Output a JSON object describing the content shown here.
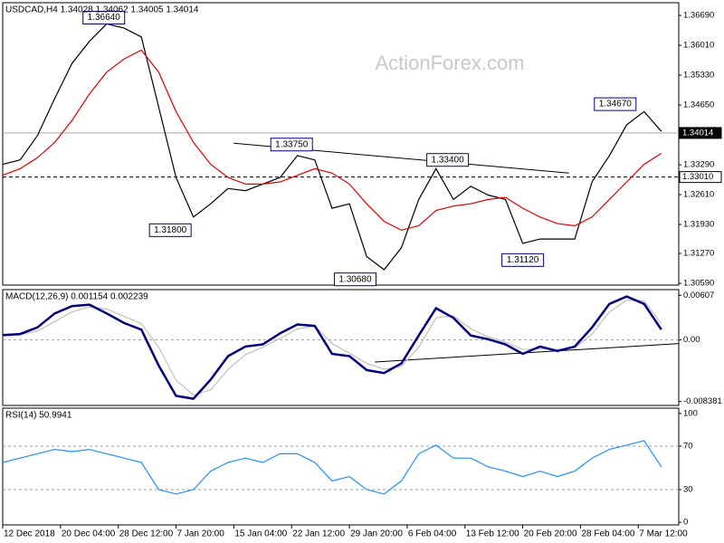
{
  "chart_data": [
    {
      "type": "line",
      "title": "USDCAD,H4 1.34028 1.34062 1.34005 1.34014",
      "watermark": "ActionForex.com",
      "x": [
        0,
        3,
        6,
        9,
        12,
        15,
        18,
        21,
        24,
        27,
        30,
        33,
        36,
        39,
        42,
        45,
        48,
        51,
        54,
        57,
        60,
        63,
        66,
        69,
        72,
        75,
        78,
        81,
        84,
        87,
        90,
        93,
        96,
        99,
        102,
        105,
        108,
        111,
        114
      ],
      "series": [
        {
          "color": "#000000",
          "values": [
            1.333,
            1.334,
            1.3395,
            1.348,
            1.356,
            1.361,
            1.365,
            1.364,
            1.362,
            1.346,
            1.33,
            1.321,
            1.324,
            1.3275,
            1.327,
            1.3285,
            1.33,
            1.335,
            1.334,
            1.323,
            1.324,
            1.312,
            1.309,
            1.314,
            1.325,
            1.332,
            1.325,
            1.328,
            1.326,
            1.325,
            1.315,
            1.316,
            1.316,
            1.316,
            1.329,
            1.335,
            1.342,
            1.345,
            1.3405
          ]
        },
        {
          "color": "#e00000",
          "values": [
            1.3305,
            1.332,
            1.3345,
            1.338,
            1.343,
            1.349,
            1.354,
            1.357,
            1.359,
            1.354,
            1.345,
            1.338,
            1.333,
            1.33,
            1.3285,
            1.3285,
            1.329,
            1.3305,
            1.332,
            1.331,
            1.3285,
            1.324,
            1.32,
            1.318,
            1.319,
            1.3225,
            1.3235,
            1.324,
            1.325,
            1.3255,
            1.323,
            1.321,
            1.3195,
            1.319,
            1.321,
            1.325,
            1.329,
            1.333,
            1.3355
          ]
        }
      ],
      "xlim": [
        0,
        117
      ],
      "ylim": [
        1.3055,
        1.3698
      ],
      "yticks": [
        {
          "value": 1.3669,
          "label": "1.36690"
        },
        {
          "value": 1.3601,
          "label": "1.36010"
        },
        {
          "value": 1.3533,
          "label": "1.35330"
        },
        {
          "value": 1.3465,
          "label": "1.34650"
        },
        {
          "value": 1.3329,
          "label": "1.33290"
        },
        {
          "value": 1.3261,
          "label": "1.32610"
        },
        {
          "value": 1.3193,
          "label": "1.31930"
        },
        {
          "value": 1.3127,
          "label": "1.31270"
        },
        {
          "value": 1.3059,
          "label": "1.30590"
        }
      ],
      "hlines": [
        {
          "value": 1.34014,
          "label": "1.34014",
          "style": "solid"
        },
        {
          "value": 1.3301,
          "label": "1.33010",
          "style": "dashed"
        }
      ],
      "trendlines": [
        {
          "x": [
            40,
            98
          ],
          "y": [
            1.3378,
            1.331
          ]
        }
      ],
      "callouts": [
        {
          "text": "1.36640",
          "x": 17.5,
          "value": 1.3664
        },
        {
          "text": "1.33750",
          "x": 50,
          "value": 1.3375
        },
        {
          "text": "1.31800",
          "x": 29,
          "value": 1.318
        },
        {
          "text": "1.30680",
          "x": 61,
          "value": 1.3068
        },
        {
          "text": "1.33400",
          "x": 77,
          "value": 1.334
        },
        {
          "text": "1.31120",
          "x": 90,
          "value": 1.3112
        },
        {
          "text": "1.34670",
          "x": 106,
          "value": 1.3467
        }
      ]
    },
    {
      "type": "line",
      "title": "MACD(12,26,9) 0.001154 0.002239",
      "x": [
        0,
        3,
        6,
        9,
        12,
        15,
        18,
        21,
        24,
        27,
        30,
        33,
        36,
        39,
        42,
        45,
        48,
        51,
        54,
        57,
        60,
        63,
        66,
        69,
        72,
        75,
        78,
        81,
        84,
        87,
        90,
        93,
        96,
        99,
        102,
        105,
        108,
        111,
        114
      ],
      "series": [
        {
          "color": "#c0c0c0",
          "values": [
            0.0005,
            0.0007,
            0.0012,
            0.0025,
            0.0038,
            0.0045,
            0.0042,
            0.0032,
            0.0022,
            -0.001,
            -0.0055,
            -0.0075,
            -0.0068,
            -0.004,
            -0.002,
            -0.001,
            0.0002,
            0.0015,
            0.0019,
            -0.0005,
            -0.0018,
            -0.0032,
            -0.004,
            -0.0036,
            -0.001,
            0.003,
            0.0033,
            0.0015,
            0.0004,
            -0.0003,
            -0.0013,
            -0.0012,
            -0.0013,
            -0.0011,
            0.0008,
            0.0038,
            0.0054,
            0.0053,
            0.0022
          ]
        },
        {
          "color": "#000080",
          "values": [
            0.00065,
            0.0008,
            0.0017,
            0.0036,
            0.0046,
            0.0048,
            0.0036,
            0.0023,
            0.0014,
            -0.0035,
            -0.0076,
            -0.008,
            -0.0054,
            -0.0022,
            -0.0009,
            -0.0006,
            0.0009,
            0.0021,
            0.0019,
            -0.0019,
            -0.0022,
            -0.0041,
            -0.0045,
            -0.0032,
            0.0006,
            0.0043,
            0.003,
            0.0006,
            0.0001,
            -0.0006,
            -0.0019,
            -0.0009,
            -0.0015,
            -0.0009,
            0.0017,
            0.0049,
            0.0059,
            0.0049,
            0.0014
          ]
        }
      ],
      "xlim": [
        0,
        117
      ],
      "ylim": [
        -0.00891,
        0.00684
      ],
      "yticks": [
        0.00607,
        {
          "value": 0,
          "label": "0.00"
        },
        -0.008381
      ],
      "levels": [
        0
      ],
      "trendlines": [
        {
          "x": [
            64.4,
            117
          ],
          "y": [
            -0.003,
            -0.0005
          ]
        }
      ]
    },
    {
      "type": "line",
      "title": "RSI(14) 50.9941",
      "x": [
        0,
        3,
        6,
        9,
        12,
        15,
        18,
        21,
        24,
        27,
        30,
        33,
        36,
        39,
        42,
        45,
        48,
        51,
        54,
        57,
        60,
        63,
        66,
        69,
        72,
        75,
        78,
        81,
        84,
        87,
        90,
        93,
        96,
        99,
        102,
        105,
        108,
        111,
        114
      ],
      "series": [
        {
          "color": "#1e90ff",
          "values": [
            55,
            59,
            63,
            67,
            65,
            67,
            63,
            59,
            55,
            30,
            26,
            30,
            47,
            55,
            59,
            55,
            63,
            63,
            55,
            38,
            42,
            30,
            26,
            38,
            63,
            71,
            59,
            59,
            51,
            47,
            42,
            47,
            42,
            47,
            59,
            67,
            71,
            75,
            51
          ]
        }
      ],
      "xlim": [
        0,
        117
      ],
      "ylim": [
        -2.4,
        104.9
      ],
      "yticks": [
        100,
        70,
        30,
        0
      ],
      "levels": [
        70,
        30
      ],
      "xticks": [
        {
          "value": 0,
          "label": "12 Dec 2018"
        },
        {
          "value": 10,
          "label": "20 Dec 04:00"
        },
        {
          "value": 20,
          "label": "28 Dec 12:00"
        },
        {
          "value": 30,
          "label": "7 Jan 20:00"
        },
        {
          "value": 40,
          "label": "15 Jan 04:00"
        },
        {
          "value": 50,
          "label": "22 Jan 12:00"
        },
        {
          "value": 60,
          "label": "29 Jan 20:00"
        },
        {
          "value": 70,
          "label": "6 Feb 04:00"
        },
        {
          "value": 80,
          "label": "13 Feb 12:00"
        },
        {
          "value": 90,
          "label": "20 Feb 20:00"
        },
        {
          "value": 100,
          "label": "28 Feb 04:00"
        },
        {
          "value": 110,
          "label": "7 Mar 12:00"
        }
      ]
    }
  ]
}
